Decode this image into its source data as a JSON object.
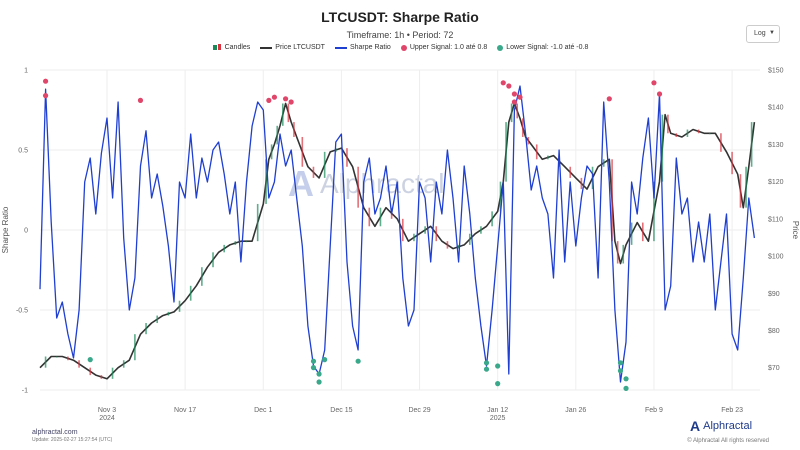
{
  "header": {
    "title": "LTCUSDT: Sharpe Ratio",
    "subtitle": "Timeframe: 1h • Period: 72",
    "scale_value": "Log"
  },
  "legend": [
    {
      "label": "Candles",
      "kind": "candle"
    },
    {
      "label": "Price LTCUSDT",
      "kind": "line",
      "color": "#333333"
    },
    {
      "label": "Sharpe Ratio",
      "kind": "line",
      "color": "#1f3fd1"
    },
    {
      "label": "Upper Signal: 1.0 até 0.8",
      "kind": "dot",
      "color": "#e0456a"
    },
    {
      "label": "Lower Signal: -1.0 até -0.8",
      "kind": "dot",
      "color": "#3aa88a"
    }
  ],
  "footer": {
    "site": "alphractal.com",
    "updated": "Update: 2025-02-27 15:27:54 (UTC)",
    "brand": "Alphractal",
    "copyright": "© Alphractal All rights reserved"
  },
  "watermark": "Alphractal",
  "chart_data": {
    "type": "line",
    "title": "LTCUSDT: Sharpe Ratio",
    "xlabel": "",
    "ylabel_left": "Sharpe Ratio",
    "ylabel_right": "Price",
    "xlim": [
      "2024-10-22",
      "2025-02-28"
    ],
    "ylim_left": [
      -1.0,
      1.0
    ],
    "ylim_right": [
      64,
      150
    ],
    "x_ticks": [
      {
        "date": "2024-11-03",
        "label": "Nov 3",
        "sub": "2024"
      },
      {
        "date": "2024-11-17",
        "label": "Nov 17",
        "sub": ""
      },
      {
        "date": "2024-12-01",
        "label": "Dec 1",
        "sub": ""
      },
      {
        "date": "2024-12-15",
        "label": "Dec 15",
        "sub": ""
      },
      {
        "date": "2024-12-29",
        "label": "Dec 29",
        "sub": ""
      },
      {
        "date": "2025-01-12",
        "label": "Jan 12",
        "sub": "2025"
      },
      {
        "date": "2025-01-26",
        "label": "Jan 26",
        "sub": ""
      },
      {
        "date": "2025-02-09",
        "label": "Feb 9",
        "sub": ""
      },
      {
        "date": "2025-02-23",
        "label": "Feb 23",
        "sub": ""
      }
    ],
    "y_left_ticks": [
      {
        "value": 1,
        "label": "1"
      },
      {
        "value": 0.5,
        "label": "0.5"
      },
      {
        "value": 0,
        "label": "0"
      },
      {
        "value": -0.5,
        "label": "-0.5"
      },
      {
        "value": -1,
        "label": "-1"
      }
    ],
    "y_right_ticks": [
      {
        "value": 150,
        "label": "$150"
      },
      {
        "value": 140,
        "label": "$140"
      },
      {
        "value": 130,
        "label": "$130"
      },
      {
        "value": 120,
        "label": "$120"
      },
      {
        "value": 110,
        "label": "$110"
      },
      {
        "value": 100,
        "label": "$100"
      },
      {
        "value": 90,
        "label": "$90"
      },
      {
        "value": 80,
        "label": "$80"
      },
      {
        "value": 70,
        "label": "$70"
      }
    ],
    "series": [
      {
        "name": "Price LTCUSDT",
        "axis": "right",
        "color": "#333333",
        "x": [
          "2024-10-22",
          "2024-10-24",
          "2024-10-26",
          "2024-10-28",
          "2024-10-30",
          "2024-11-01",
          "2024-11-03",
          "2024-11-05",
          "2024-11-07",
          "2024-11-09",
          "2024-11-11",
          "2024-11-13",
          "2024-11-15",
          "2024-11-17",
          "2024-11-19",
          "2024-11-21",
          "2024-11-23",
          "2024-11-25",
          "2024-11-27",
          "2024-11-29",
          "2024-12-01",
          "2024-12-02",
          "2024-12-03",
          "2024-12-04",
          "2024-12-05",
          "2024-12-06",
          "2024-12-07",
          "2024-12-09",
          "2024-12-11",
          "2024-12-13",
          "2024-12-15",
          "2024-12-17",
          "2024-12-19",
          "2024-12-21",
          "2024-12-23",
          "2024-12-25",
          "2024-12-27",
          "2024-12-29",
          "2024-12-31",
          "2025-01-02",
          "2025-01-04",
          "2025-01-06",
          "2025-01-08",
          "2025-01-10",
          "2025-01-12",
          "2025-01-13",
          "2025-01-14",
          "2025-01-15",
          "2025-01-16",
          "2025-01-17",
          "2025-01-18",
          "2025-01-20",
          "2025-01-22",
          "2025-01-24",
          "2025-01-26",
          "2025-01-28",
          "2025-01-30",
          "2025-02-01",
          "2025-02-02",
          "2025-02-03",
          "2025-02-04",
          "2025-02-06",
          "2025-02-08",
          "2025-02-10",
          "2025-02-11",
          "2025-02-12",
          "2025-02-14",
          "2025-02-16",
          "2025-02-18",
          "2025-02-20",
          "2025-02-22",
          "2025-02-24",
          "2025-02-25",
          "2025-02-26",
          "2025-02-27"
        ],
        "values": [
          70,
          73,
          73,
          72,
          70,
          68,
          67,
          70,
          72,
          79,
          82,
          84,
          85,
          88,
          92,
          97,
          101,
          103,
          104,
          104,
          114,
          126,
          130,
          135,
          141,
          136,
          132,
          124,
          121,
          128,
          129,
          124,
          113,
          108,
          113,
          110,
          104,
          106,
          108,
          104,
          102,
          103,
          106,
          108,
          112,
          120,
          136,
          141,
          137,
          132,
          130,
          126,
          127,
          124,
          121,
          118,
          124,
          126,
          104,
          98,
          103,
          109,
          104,
          120,
          138,
          133,
          132,
          134,
          133,
          133,
          128,
          122,
          113,
          124,
          136
        ]
      },
      {
        "name": "Sharpe Ratio",
        "axis": "left",
        "color": "#1f3fd1",
        "x": [
          "2024-10-22",
          "2024-10-23",
          "2024-10-24",
          "2024-10-25",
          "2024-10-26",
          "2024-10-27",
          "2024-10-28",
          "2024-10-29",
          "2024-10-30",
          "2024-10-31",
          "2024-11-01",
          "2024-11-02",
          "2024-11-03",
          "2024-11-04",
          "2024-11-05",
          "2024-11-06",
          "2024-11-07",
          "2024-11-08",
          "2024-11-09",
          "2024-11-10",
          "2024-11-11",
          "2024-11-12",
          "2024-11-13",
          "2024-11-14",
          "2024-11-15",
          "2024-11-16",
          "2024-11-17",
          "2024-11-18",
          "2024-11-19",
          "2024-11-20",
          "2024-11-21",
          "2024-11-22",
          "2024-11-23",
          "2024-11-24",
          "2024-11-25",
          "2024-11-26",
          "2024-11-27",
          "2024-11-28",
          "2024-11-29",
          "2024-11-30",
          "2024-12-01",
          "2024-12-02",
          "2024-12-03",
          "2024-12-04",
          "2024-12-05",
          "2024-12-06",
          "2024-12-07",
          "2024-12-08",
          "2024-12-09",
          "2024-12-10",
          "2024-12-11",
          "2024-12-12",
          "2024-12-13",
          "2024-12-14",
          "2024-12-15",
          "2024-12-16",
          "2024-12-17",
          "2024-12-18",
          "2024-12-19",
          "2024-12-20",
          "2024-12-21",
          "2024-12-22",
          "2024-12-23",
          "2024-12-24",
          "2024-12-25",
          "2024-12-26",
          "2024-12-27",
          "2024-12-28",
          "2024-12-29",
          "2024-12-30",
          "2024-12-31",
          "2025-01-01",
          "2025-01-02",
          "2025-01-03",
          "2025-01-04",
          "2025-01-05",
          "2025-01-06",
          "2025-01-07",
          "2025-01-08",
          "2025-01-09",
          "2025-01-10",
          "2025-01-11",
          "2025-01-12",
          "2025-01-13",
          "2025-01-14",
          "2025-01-15",
          "2025-01-16",
          "2025-01-17",
          "2025-01-18",
          "2025-01-19",
          "2025-01-20",
          "2025-01-21",
          "2025-01-22",
          "2025-01-23",
          "2025-01-24",
          "2025-01-25",
          "2025-01-26",
          "2025-01-27",
          "2025-01-28",
          "2025-01-29",
          "2025-01-30",
          "2025-01-31",
          "2025-02-01",
          "2025-02-02",
          "2025-02-03",
          "2025-02-04",
          "2025-02-05",
          "2025-02-06",
          "2025-02-07",
          "2025-02-08",
          "2025-02-09",
          "2025-02-10",
          "2025-02-11",
          "2025-02-12",
          "2025-02-13",
          "2025-02-14",
          "2025-02-15",
          "2025-02-16",
          "2025-02-17",
          "2025-02-18",
          "2025-02-19",
          "2025-02-20",
          "2025-02-21",
          "2025-02-22",
          "2025-02-23",
          "2025-02-24",
          "2025-02-25",
          "2025-02-26",
          "2025-02-27"
        ],
        "values": [
          -0.37,
          0.88,
          0.05,
          -0.55,
          -0.45,
          -0.65,
          -0.8,
          -0.5,
          0.3,
          0.45,
          0.1,
          0.48,
          0.7,
          0.2,
          0.8,
          -0.05,
          -0.5,
          -0.3,
          0.4,
          0.62,
          0.2,
          0.35,
          0.15,
          -0.1,
          -0.45,
          0.3,
          0.2,
          0.6,
          0.2,
          0.45,
          0.3,
          0.5,
          0.55,
          0.35,
          0.1,
          0.3,
          -0.2,
          0.3,
          0.65,
          0.8,
          0.75,
          0.2,
          0.3,
          0.6,
          0.4,
          0.5,
          0.2,
          -0.1,
          -0.6,
          -0.85,
          -0.9,
          -0.75,
          -0.1,
          0.55,
          0.6,
          -0.2,
          -0.6,
          -0.75,
          0.3,
          0.45,
          0.1,
          0.2,
          0.4,
          0.1,
          0.3,
          -0.3,
          -0.6,
          -0.5,
          0.3,
          0.2,
          -0.2,
          0.3,
          0.1,
          0.5,
          0.2,
          -0.2,
          0.4,
          0.1,
          -0.3,
          -0.6,
          -0.85,
          -0.5,
          -0.1,
          0.3,
          -0.9,
          0.75,
          0.9,
          0.6,
          0.25,
          0.4,
          0.2,
          0.1,
          -0.3,
          0.5,
          -0.2,
          0.3,
          -0.1,
          0.2,
          0.4,
          0.35,
          -0.3,
          0.8,
          0.3,
          -0.5,
          -0.95,
          -0.7,
          0.3,
          0.1,
          0.45,
          0.7,
          0.2,
          0.85,
          -0.5,
          -0.35,
          0.45,
          0.1,
          0.2,
          -0.2,
          0.05,
          -0.2,
          0.1,
          -0.5,
          -0.2,
          0.1,
          -0.65,
          -0.75,
          -0.3,
          0.2,
          -0.05
        ]
      }
    ],
    "upper_signals": {
      "name": "Upper Signal: 1.0 até 0.8",
      "color": "#e0456a",
      "x": [
        "2024-10-23",
        "2024-10-23",
        "2024-11-09",
        "2024-12-02",
        "2024-12-03",
        "2024-12-05",
        "2024-12-06",
        "2025-01-13",
        "2025-01-14",
        "2025-01-15",
        "2025-01-15",
        "2025-01-16",
        "2025-02-01",
        "2025-02-09",
        "2025-02-10"
      ],
      "values": [
        0.93,
        0.84,
        0.81,
        0.81,
        0.83,
        0.82,
        0.8,
        0.92,
        0.9,
        0.85,
        0.8,
        0.83,
        0.82,
        0.92,
        0.85
      ]
    },
    "lower_signals": {
      "name": "Lower Signal: -1.0 até -0.8",
      "color": "#3aa88a",
      "x": [
        "2024-10-31",
        "2024-12-10",
        "2024-12-10",
        "2024-12-11",
        "2024-12-11",
        "2024-12-12",
        "2024-12-18",
        "2025-01-10",
        "2025-01-10",
        "2025-01-12",
        "2025-01-12",
        "2025-02-03",
        "2025-02-03",
        "2025-02-04",
        "2025-02-04"
      ],
      "values": [
        -0.81,
        -0.82,
        -0.86,
        -0.9,
        -0.95,
        -0.81,
        -0.82,
        -0.83,
        -0.87,
        -0.85,
        -0.96,
        -0.83,
        -0.88,
        -0.93,
        -0.99
      ]
    }
  }
}
